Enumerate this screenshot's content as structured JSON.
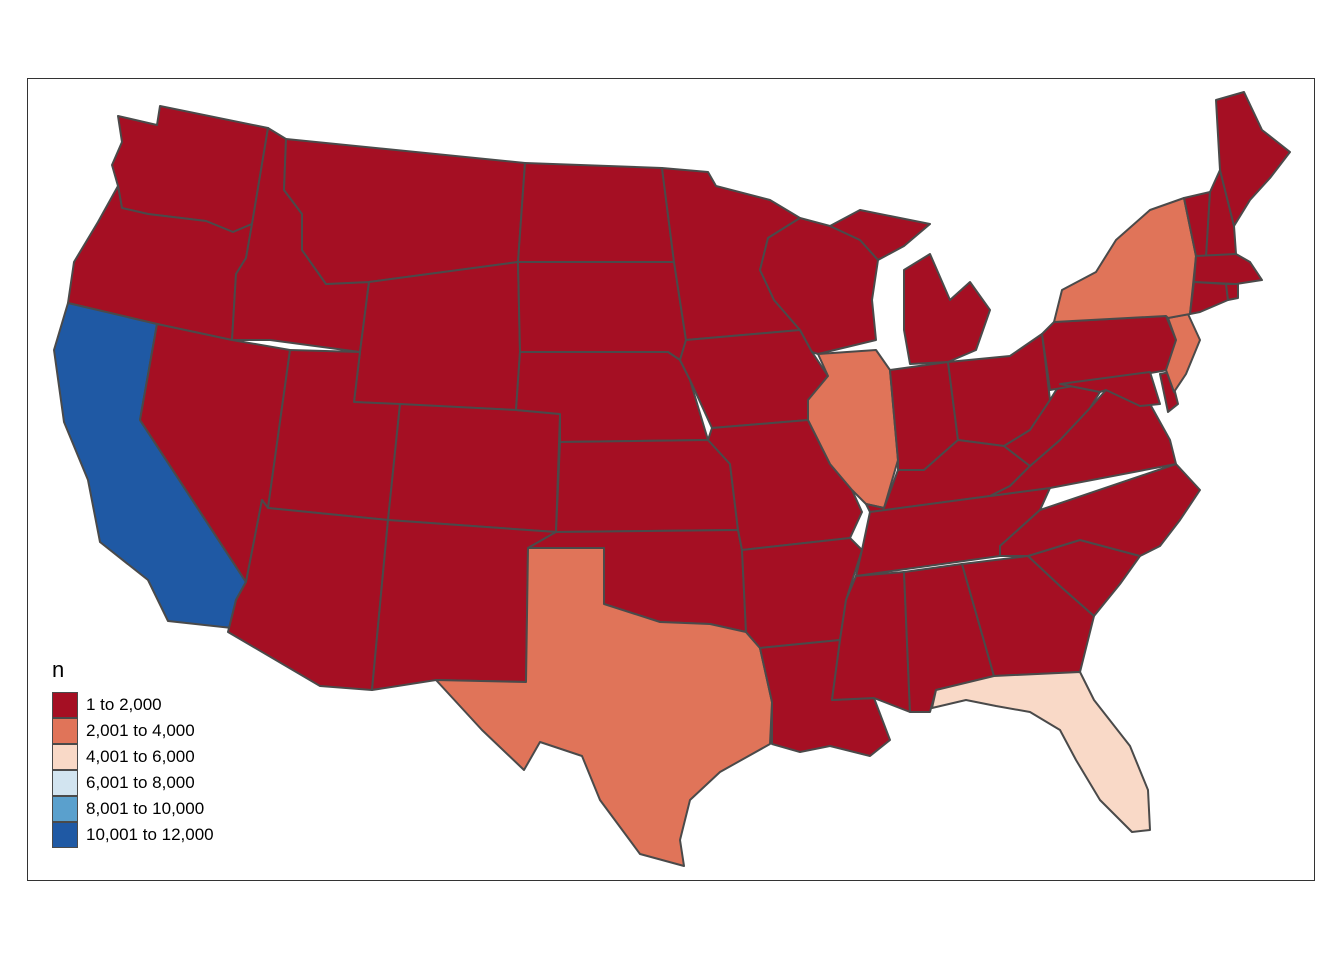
{
  "legend": {
    "title": "n",
    "classes": [
      {
        "label": "1 to 2,000",
        "color": "#a50f23"
      },
      {
        "label": "2,001 to 4,000",
        "color": "#e07459"
      },
      {
        "label": "4,001 to 6,000",
        "color": "#f9d9c7"
      },
      {
        "label": "6,001 to 8,000",
        "color": "#d2e4f0"
      },
      {
        "label": "8,001 to 10,000",
        "color": "#5aa0cd"
      },
      {
        "label": "10,001 to 12,000",
        "color": "#1f59a4"
      }
    ]
  },
  "map": {
    "region": "Contiguous United States",
    "border_color": "#4a4a4a",
    "states": [
      {
        "name": "California",
        "class": 5
      },
      {
        "name": "Texas",
        "class": 1
      },
      {
        "name": "Illinois",
        "class": 1
      },
      {
        "name": "New York",
        "class": 1
      },
      {
        "name": "New Jersey",
        "class": 1
      },
      {
        "name": "Florida",
        "class": 2
      },
      {
        "name": "Washington",
        "class": 0
      },
      {
        "name": "Oregon",
        "class": 0
      },
      {
        "name": "Idaho",
        "class": 0
      },
      {
        "name": "Montana",
        "class": 0
      },
      {
        "name": "Nevada",
        "class": 0
      },
      {
        "name": "Utah",
        "class": 0
      },
      {
        "name": "Arizona",
        "class": 0
      },
      {
        "name": "Wyoming",
        "class": 0
      },
      {
        "name": "Colorado",
        "class": 0
      },
      {
        "name": "New Mexico",
        "class": 0
      },
      {
        "name": "North Dakota",
        "class": 0
      },
      {
        "name": "South Dakota",
        "class": 0
      },
      {
        "name": "Nebraska",
        "class": 0
      },
      {
        "name": "Kansas",
        "class": 0
      },
      {
        "name": "Oklahoma",
        "class": 0
      },
      {
        "name": "Minnesota",
        "class": 0
      },
      {
        "name": "Iowa",
        "class": 0
      },
      {
        "name": "Missouri",
        "class": 0
      },
      {
        "name": "Arkansas",
        "class": 0
      },
      {
        "name": "Louisiana",
        "class": 0
      },
      {
        "name": "Wisconsin",
        "class": 0
      },
      {
        "name": "Michigan",
        "class": 0
      },
      {
        "name": "Indiana",
        "class": 0
      },
      {
        "name": "Ohio",
        "class": 0
      },
      {
        "name": "Kentucky",
        "class": 0
      },
      {
        "name": "Tennessee",
        "class": 0
      },
      {
        "name": "Mississippi",
        "class": 0
      },
      {
        "name": "Alabama",
        "class": 0
      },
      {
        "name": "Georgia",
        "class": 0
      },
      {
        "name": "South Carolina",
        "class": 0
      },
      {
        "name": "North Carolina",
        "class": 0
      },
      {
        "name": "Virginia",
        "class": 0
      },
      {
        "name": "West Virginia",
        "class": 0
      },
      {
        "name": "Pennsylvania",
        "class": 0
      },
      {
        "name": "Maryland",
        "class": 0
      },
      {
        "name": "Delaware",
        "class": 0
      },
      {
        "name": "Vermont",
        "class": 0
      },
      {
        "name": "New Hampshire",
        "class": 0
      },
      {
        "name": "Maine",
        "class": 0
      },
      {
        "name": "Massachusetts",
        "class": 0
      },
      {
        "name": "Connecticut",
        "class": 0
      },
      {
        "name": "Rhode Island",
        "class": 0
      }
    ]
  }
}
